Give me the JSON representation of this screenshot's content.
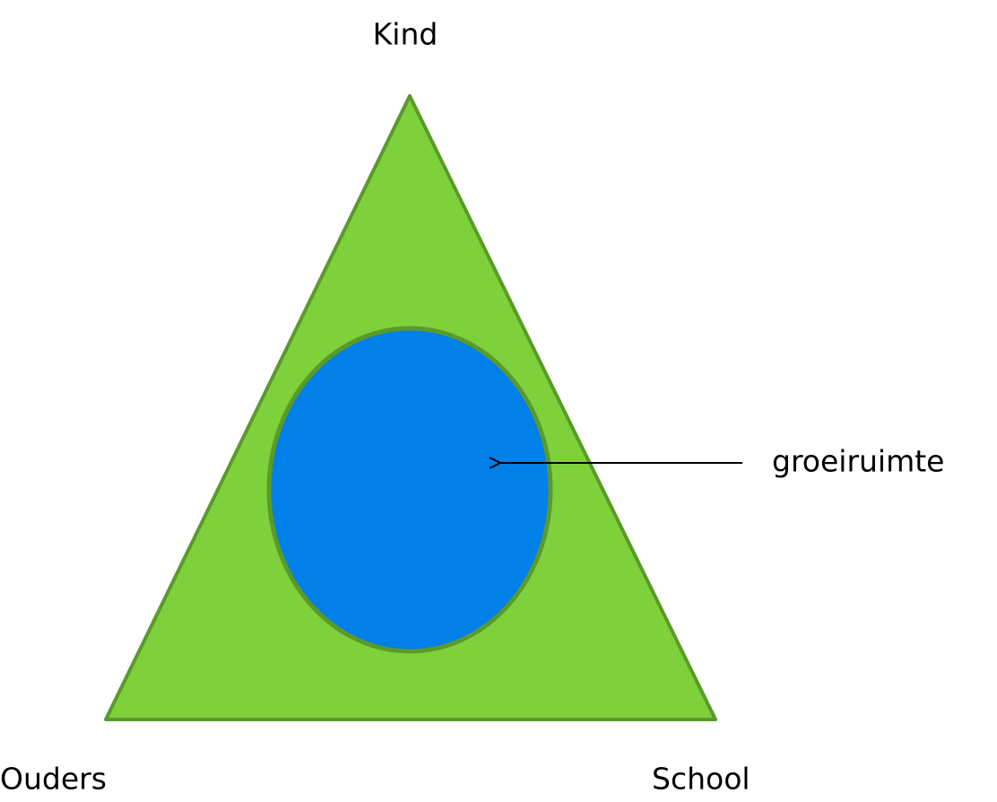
{
  "nodes": [
    {
      "label": "Kind"
    },
    {
      "label": "Ouders"
    },
    {
      "label": "School"
    }
  ],
  "center": {
    "label": "groeiruimte"
  }
}
